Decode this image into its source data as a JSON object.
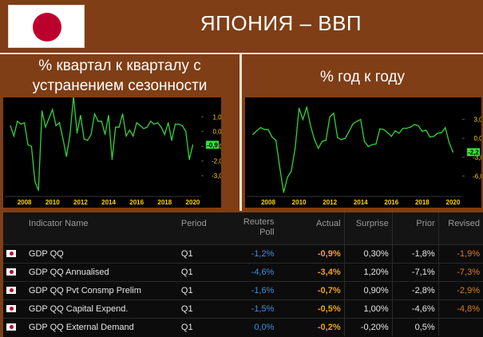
{
  "header": {
    "title": "ЯПОНИЯ – ВВП"
  },
  "left_panel": {
    "subtitle_line1": "% квартал к кварталу с",
    "subtitle_line2": "устранением сезонности"
  },
  "right_panel": {
    "subtitle": "% год к году"
  },
  "colors": {
    "background": "#7f3e15",
    "line": "#34d13a",
    "accent_value": "#2ee63a",
    "flag_red": "#bc002d"
  },
  "chart_data": [
    {
      "type": "line",
      "x": [
        2007.0,
        2007.25,
        2007.5,
        2007.75,
        2008.0,
        2008.25,
        2008.5,
        2008.75,
        2009.0,
        2009.25,
        2009.5,
        2009.75,
        2010.0,
        2010.25,
        2010.5,
        2010.75,
        2011.0,
        2011.25,
        2011.5,
        2011.75,
        2012.0,
        2012.25,
        2012.5,
        2012.75,
        2013.0,
        2013.25,
        2013.5,
        2013.75,
        2014.0,
        2014.25,
        2014.5,
        2014.75,
        2015.0,
        2015.25,
        2015.5,
        2015.75,
        2016.0,
        2016.25,
        2016.5,
        2016.75,
        2017.0,
        2017.25,
        2017.5,
        2017.75,
        2018.0,
        2018.25,
        2018.5,
        2018.75,
        2019.0,
        2019.25,
        2019.5,
        2019.75,
        2020.0
      ],
      "values": [
        0.4,
        -0.3,
        0.7,
        0.5,
        0.6,
        -0.9,
        -1.0,
        -3.4,
        -4.0,
        1.4,
        0.3,
        0.9,
        1.5,
        0.4,
        0.6,
        -0.5,
        -1.7,
        -0.2,
        2.4,
        -0.1,
        1.1,
        -0.5,
        -0.6,
        -0.2,
        1.2,
        0.7,
        0.7,
        -0.2,
        1.1,
        -1.9,
        0.3,
        0.3,
        1.2,
        -0.3,
        0.1,
        -0.3,
        0.6,
        0.4,
        0.2,
        0.3,
        0.7,
        0.5,
        0.6,
        0.3,
        -0.2,
        0.6,
        -0.6,
        0.5,
        0.5,
        0.4,
        0.0,
        -1.9,
        -0.9
      ],
      "ylim": [
        -4.3,
        2.1
      ],
      "yticks": [
        "1,0",
        "0,0",
        "-1,0",
        "-2,0",
        "-3,0"
      ],
      "yticks_values": [
        1.0,
        0.0,
        -1.0,
        -2.0,
        -3.0
      ],
      "xticks": [
        "2008",
        "2010",
        "2012",
        "2014",
        "2016",
        "2018",
        "2020"
      ],
      "last_value_label": "-0,9"
    },
    {
      "type": "line",
      "x": [
        2007.0,
        2007.25,
        2007.5,
        2007.75,
        2008.0,
        2008.25,
        2008.5,
        2008.75,
        2009.0,
        2009.25,
        2009.5,
        2009.75,
        2010.0,
        2010.25,
        2010.5,
        2010.75,
        2011.0,
        2011.25,
        2011.5,
        2011.75,
        2012.0,
        2012.25,
        2012.5,
        2012.75,
        2013.0,
        2013.25,
        2013.5,
        2013.75,
        2014.0,
        2014.25,
        2014.5,
        2014.75,
        2015.0,
        2015.25,
        2015.5,
        2015.75,
        2016.0,
        2016.25,
        2016.5,
        2016.75,
        2017.0,
        2017.25,
        2017.5,
        2017.75,
        2018.0,
        2018.25,
        2018.5,
        2018.75,
        2019.0,
        2019.25,
        2019.5,
        2019.75,
        2020.0
      ],
      "values": [
        0.6,
        1.2,
        1.7,
        1.4,
        1.4,
        0.2,
        -0.3,
        -4.7,
        -8.6,
        -6.2,
        -5.2,
        -1.5,
        4.8,
        3.0,
        5.0,
        2.0,
        -0.2,
        -1.6,
        -0.5,
        -0.3,
        3.4,
        4.0,
        0.1,
        -0.2,
        0.0,
        1.1,
        2.3,
        2.7,
        3.0,
        -0.5,
        -1.3,
        -1.0,
        -0.9,
        1.5,
        1.4,
        0.9,
        0.3,
        1.2,
        0.8,
        1.6,
        1.6,
        1.8,
        2.2,
        2.0,
        1.1,
        1.3,
        0.2,
        0.3,
        0.8,
        0.9,
        1.7,
        -0.7,
        -2.2
      ],
      "ylim": [
        -9.0,
        6.0
      ],
      "yticks": [
        "3,0",
        "0,0",
        "-3,0",
        "-6,0"
      ],
      "yticks_values": [
        3.0,
        0.0,
        -3.0,
        -6.0
      ],
      "xticks": [
        "2008",
        "2010",
        "2012",
        "2014",
        "2016",
        "2018",
        "2020"
      ],
      "last_value_label": "-2,2"
    },
    {
      "type": "table",
      "columns": [
        "",
        "Indicator Name",
        "Period",
        "Reuters Poll",
        "Actual",
        "Surprise",
        "Prior",
        "Revised"
      ],
      "rows": [
        {
          "indicator": "GDP QQ",
          "period": "Q1",
          "poll": "-1,2%",
          "actual": "-0,9%",
          "surprise": "0,30%",
          "prior": "-1,8%",
          "revised": "-1,9%"
        },
        {
          "indicator": "GDP QQ Annualised",
          "period": "Q1",
          "poll": "-4,6%",
          "actual": "-3,4%",
          "surprise": "1,20%",
          "prior": "-7,1%",
          "revised": "-7,3%"
        },
        {
          "indicator": "GDP QQ Pvt Consmp Prelim",
          "period": "Q1",
          "poll": "-1,6%",
          "actual": "-0,7%",
          "surprise": "0,90%",
          "prior": "-2,8%",
          "revised": "-2,9%"
        },
        {
          "indicator": "GDP QQ Capital Expend.",
          "period": "Q1",
          "poll": "-1,5%",
          "actual": "-0,5%",
          "surprise": "1,00%",
          "prior": "-4,6%",
          "revised": "-4,8%"
        },
        {
          "indicator": "GDP QQ External Demand",
          "period": "Q1",
          "poll": "0,0%",
          "actual": "-0,2%",
          "surprise": "-0,20%",
          "prior": "0,5%",
          "revised": ""
        }
      ]
    }
  ],
  "table": {
    "headers": {
      "indicator": "Indicator Name",
      "period": "Period",
      "poll_line1": "Reuters",
      "poll_line2": "Poll",
      "actual": "Actual",
      "surprise": "Surprise",
      "prior": "Prior",
      "revised": "Revised"
    },
    "rows": [
      {
        "indicator": "GDP QQ",
        "period": "Q1",
        "poll": "-1,2%",
        "actual": "-0,9%",
        "surprise": "0,30%",
        "prior": "-1,8%",
        "revised": "-1,9%"
      },
      {
        "indicator": "GDP QQ Annualised",
        "period": "Q1",
        "poll": "-4,6%",
        "actual": "-3,4%",
        "surprise": "1,20%",
        "prior": "-7,1%",
        "revised": "-7,3%"
      },
      {
        "indicator": "GDP QQ Pvt Consmp Prelim",
        "period": "Q1",
        "poll": "-1,6%",
        "actual": "-0,7%",
        "surprise": "0,90%",
        "prior": "-2,8%",
        "revised": "-2,9%"
      },
      {
        "indicator": "GDP QQ Capital Expend.",
        "period": "Q1",
        "poll": "-1,5%",
        "actual": "-0,5%",
        "surprise": "1,00%",
        "prior": "-4,6%",
        "revised": "-4,8%"
      },
      {
        "indicator": "GDP QQ External Demand",
        "period": "Q1",
        "poll": "0,0%",
        "actual": "-0,2%",
        "surprise": "-0,20%",
        "prior": "0,5%",
        "revised": ""
      }
    ]
  }
}
